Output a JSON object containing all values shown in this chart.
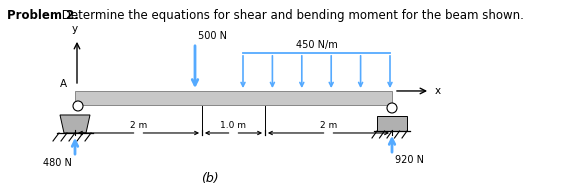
{
  "title_bold": "Problem 2.",
  "title_normal": " Determine the equations for shear and bending moment for the beam shown.",
  "label_b": "(b)",
  "beam_color": "#c8c8c8",
  "beam_edge_color": "#888888",
  "support_color": "#b0b0b0",
  "arrow_color": "#55aaff",
  "text_color": "#000000",
  "background_color": "#ffffff",
  "load_500_label": "500 N",
  "load_450_label": "450 N/m",
  "reaction_480_label": "480 N",
  "reaction_920_label": "920 N",
  "dim_2m_1_label": "2 m",
  "dim_1m_label": "1.0 m",
  "dim_2m_2_label": "2 m",
  "label_y": "y",
  "label_x": "x",
  "label_A": "A"
}
